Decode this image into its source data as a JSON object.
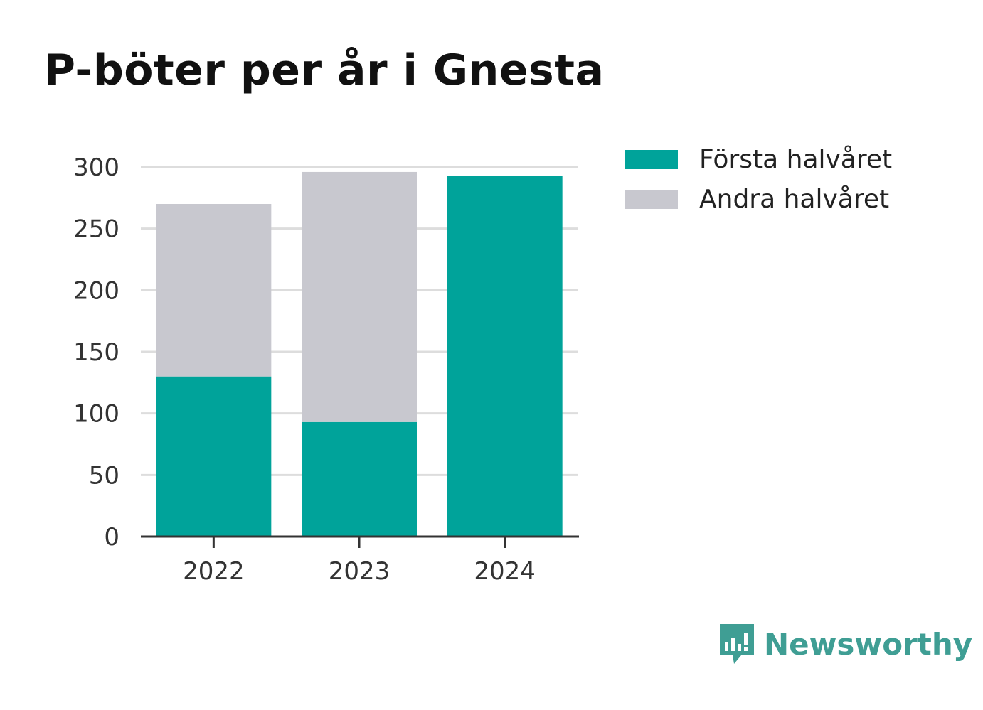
{
  "chart_data": {
    "type": "bar",
    "stacked": true,
    "title": "P-böter per år i Gnesta",
    "xlabel": "",
    "ylabel": "",
    "categories": [
      "2022",
      "2023",
      "2024"
    ],
    "series": [
      {
        "name": "Första halvåret",
        "color": "#00a39a",
        "values": [
          130,
          93,
          293
        ]
      },
      {
        "name": "Andra halvåret",
        "color": "#c8c8cf",
        "values": [
          140,
          203,
          0
        ]
      }
    ],
    "ylim": [
      0,
      300
    ],
    "yticks": [
      0,
      50,
      100,
      150,
      200,
      250,
      300
    ],
    "grid": true,
    "legend_position": "top-right"
  },
  "brand": {
    "name": "Newsworthy",
    "icon": "bar-chart-speech-icon",
    "color": "#3f9e94"
  }
}
